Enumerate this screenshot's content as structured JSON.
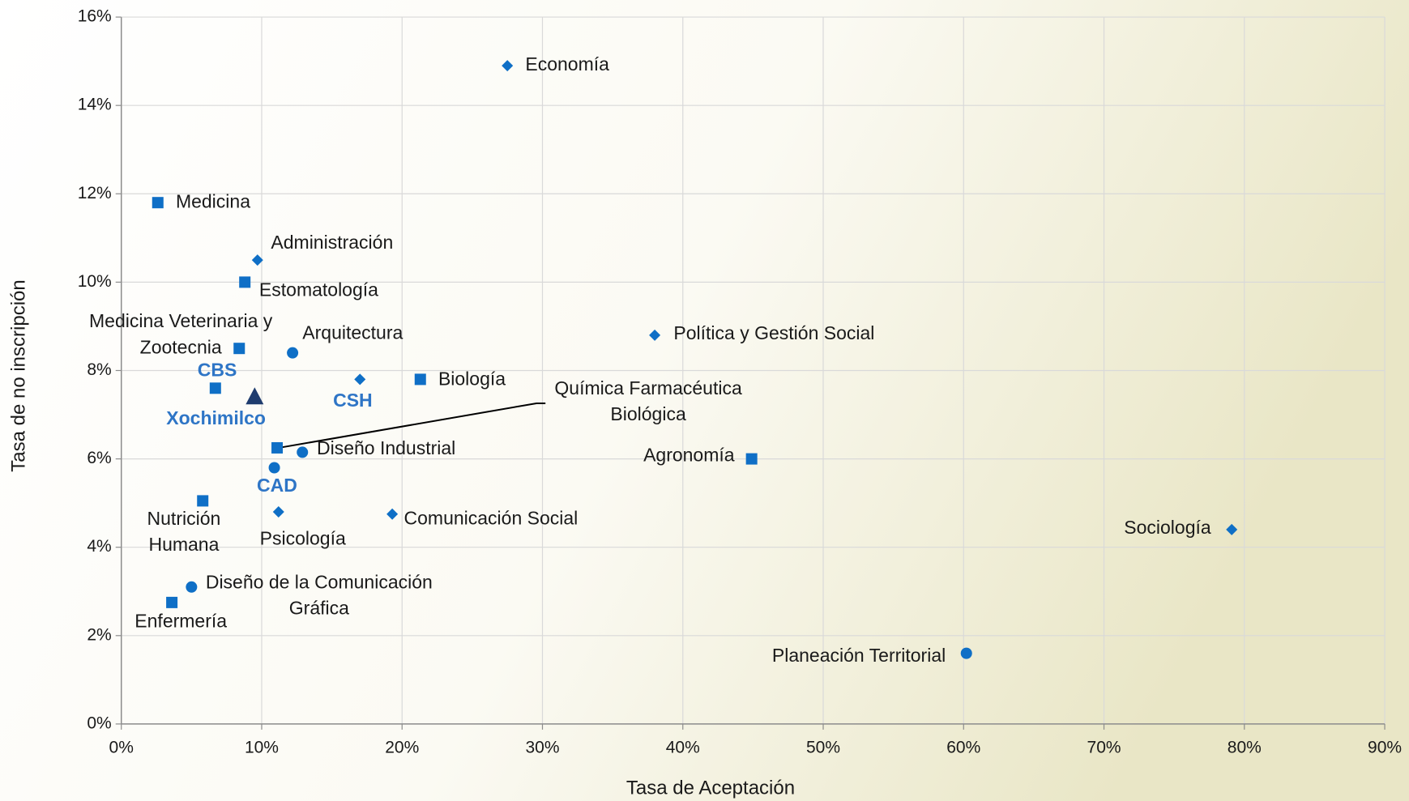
{
  "chart_data": {
    "type": "scatter",
    "x_label": "Tasa de Aceptación",
    "y_label": "Tasa de no inscripción",
    "xlim": [
      0,
      90
    ],
    "ylim": [
      0,
      16
    ],
    "xticks": [
      {
        "value": 0,
        "label": "0%"
      },
      {
        "value": 10,
        "label": "10%"
      },
      {
        "value": 20,
        "label": "20%"
      },
      {
        "value": 30,
        "label": "30%"
      },
      {
        "value": 40,
        "label": "40%"
      },
      {
        "value": 50,
        "label": "50%"
      },
      {
        "value": 60,
        "label": "60%"
      },
      {
        "value": 70,
        "label": "70%"
      },
      {
        "value": 80,
        "label": "80%"
      },
      {
        "value": 90,
        "label": "90%"
      }
    ],
    "yticks": [
      {
        "value": 0,
        "label": "0%"
      },
      {
        "value": 2,
        "label": "2%"
      },
      {
        "value": 4,
        "label": "4%"
      },
      {
        "value": 6,
        "label": "6%"
      },
      {
        "value": 8,
        "label": "8%"
      },
      {
        "value": 10,
        "label": "10%"
      },
      {
        "value": 12,
        "label": "12%"
      },
      {
        "value": 14,
        "label": "14%"
      },
      {
        "value": 16,
        "label": "16%"
      }
    ],
    "grid": true,
    "color": "#0f6fc6",
    "points": [
      {
        "label": [
          "Economía"
        ],
        "x": 27.5,
        "y": 14.9,
        "marker": "diamond"
      },
      {
        "label": [
          "Medicina"
        ],
        "x": 2.6,
        "y": 11.8,
        "marker": "square"
      },
      {
        "label": [
          "Administración"
        ],
        "x": 9.7,
        "y": 10.5,
        "marker": "diamond"
      },
      {
        "label": [
          "Estomatología"
        ],
        "x": 8.8,
        "y": 10.0,
        "marker": "square"
      },
      {
        "label": [
          "Medicina Veterinaria y",
          "Zootecnia"
        ],
        "x": 8.4,
        "y": 8.5,
        "marker": "square"
      },
      {
        "label": [
          "Arquitectura"
        ],
        "x": 12.2,
        "y": 8.4,
        "marker": "circle"
      },
      {
        "label": [
          "CBS"
        ],
        "x": 6.7,
        "y": 7.6,
        "marker": "square",
        "label_color": "#2e75c6"
      },
      {
        "label": [
          "Xochimilco"
        ],
        "x": 9.5,
        "y": 7.4,
        "marker": "triangle",
        "color": "#1f3c6e",
        "label_color": "#2e75c6"
      },
      {
        "label": [
          "CSH"
        ],
        "x": 17.0,
        "y": 7.8,
        "marker": "diamond",
        "label_color": "#2e75c6"
      },
      {
        "label": [
          "Biología"
        ],
        "x": 21.3,
        "y": 7.8,
        "marker": "square"
      },
      {
        "label": [
          "Química Farmacéutica",
          "Biológica"
        ],
        "x": 11.1,
        "y": 6.25,
        "marker": "square"
      },
      {
        "label": [
          "Diseño Industrial"
        ],
        "x": 12.9,
        "y": 6.15,
        "marker": "circle"
      },
      {
        "label": [
          "CAD"
        ],
        "x": 10.9,
        "y": 5.8,
        "marker": "circle",
        "label_color": "#2e75c6"
      },
      {
        "label": [
          "Agronomía"
        ],
        "x": 44.9,
        "y": 6.0,
        "marker": "square"
      },
      {
        "label": [
          "Nutrición",
          "Humana"
        ],
        "x": 5.8,
        "y": 5.05,
        "marker": "square"
      },
      {
        "label": [
          "Psicología"
        ],
        "x": 11.2,
        "y": 4.8,
        "marker": "diamond"
      },
      {
        "label": [
          "Comunicación Social"
        ],
        "x": 19.3,
        "y": 4.75,
        "marker": "diamond"
      },
      {
        "label": [
          "Sociología"
        ],
        "x": 79.1,
        "y": 4.4,
        "marker": "diamond"
      },
      {
        "label": [
          "Diseño de la Comunicación",
          "Gráfica"
        ],
        "x": 5.0,
        "y": 3.1,
        "marker": "circle"
      },
      {
        "label": [
          "Enfermería"
        ],
        "x": 3.6,
        "y": 2.75,
        "marker": "square"
      },
      {
        "label": [
          "Planeación Territorial"
        ],
        "x": 60.2,
        "y": 1.6,
        "marker": "circle"
      },
      {
        "label": [
          "Política y Gestión Social"
        ],
        "x": 38.0,
        "y": 8.8,
        "marker": "diamond"
      }
    ]
  }
}
